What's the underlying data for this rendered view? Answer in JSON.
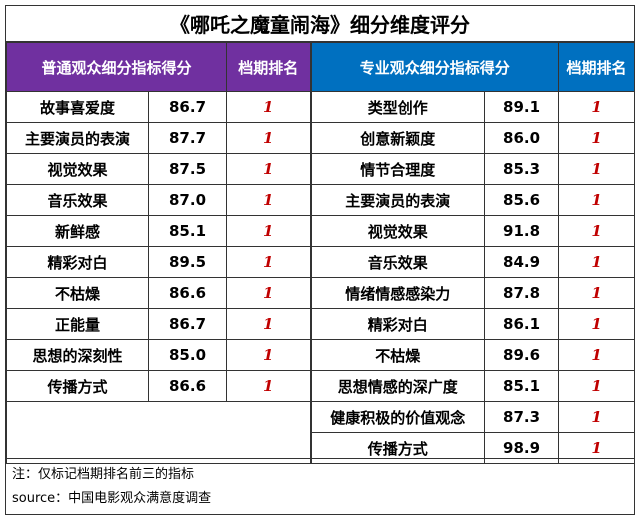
{
  "title": "《哪吒之魔童闹海》细分维度评分",
  "left": {
    "header_metric": "普通观众细分指标得分",
    "header_rank": "档期排名",
    "rows": [
      {
        "label": "故事喜爱度",
        "score": "86.7",
        "rank": "1"
      },
      {
        "label": "主要演员的表演",
        "score": "87.7",
        "rank": "1"
      },
      {
        "label": "视觉效果",
        "score": "87.5",
        "rank": "1"
      },
      {
        "label": "音乐效果",
        "score": "87.0",
        "rank": "1"
      },
      {
        "label": "新鲜感",
        "score": "85.1",
        "rank": "1"
      },
      {
        "label": "精彩对白",
        "score": "89.5",
        "rank": "1"
      },
      {
        "label": "不枯燥",
        "score": "86.6",
        "rank": "1"
      },
      {
        "label": "正能量",
        "score": "86.7",
        "rank": "1"
      },
      {
        "label": "思想的深刻性",
        "score": "85.0",
        "rank": "1"
      },
      {
        "label": "传播方式",
        "score": "86.6",
        "rank": "1"
      }
    ]
  },
  "right": {
    "header_metric": "专业观众细分指标得分",
    "header_rank": "档期排名",
    "rows": [
      {
        "label": "类型创作",
        "score": "89.1",
        "rank": "1"
      },
      {
        "label": "创意新颖度",
        "score": "86.0",
        "rank": "1"
      },
      {
        "label": "情节合理度",
        "score": "85.3",
        "rank": "1"
      },
      {
        "label": "主要演员的表演",
        "score": "85.6",
        "rank": "1"
      },
      {
        "label": "视觉效果",
        "score": "91.8",
        "rank": "1"
      },
      {
        "label": "音乐效果",
        "score": "84.9",
        "rank": "1"
      },
      {
        "label": "情绪情感感染力",
        "score": "87.8",
        "rank": "1"
      },
      {
        "label": "精彩对白",
        "score": "86.1",
        "rank": "1"
      },
      {
        "label": "不枯燥",
        "score": "89.6",
        "rank": "1"
      },
      {
        "label": "思想情感的深广度",
        "score": "85.1",
        "rank": "1"
      },
      {
        "label": "健康积极的价值观念",
        "score": "87.3",
        "rank": "1"
      },
      {
        "label": "传播方式",
        "score": "98.9",
        "rank": "1"
      }
    ]
  },
  "notes": {
    "note": "注：仅标记档期排名前三的指标",
    "source": "source：中国电影观众满意度调查"
  },
  "colors": {
    "left_header": "#7030a0",
    "right_header": "#0070c0",
    "rank_text": "#c00000"
  }
}
